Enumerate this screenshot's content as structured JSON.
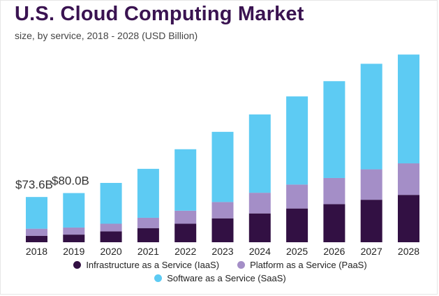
{
  "title": "U.S. Cloud Computing Market",
  "subtitle": "size, by service, 2018 - 2028 (USD Billion)",
  "colors": {
    "iaas": "#321043",
    "paas": "#a48ec7",
    "saas": "#5dcbf3",
    "title": "#3a1351"
  },
  "chart_data": {
    "type": "bar",
    "stacked": true,
    "categories": [
      "2018",
      "2019",
      "2020",
      "2021",
      "2022",
      "2023",
      "2024",
      "2025",
      "2026",
      "2027",
      "2028"
    ],
    "series": [
      {
        "name": "Infrastructure as a Service (IaaS)",
        "color": "#321043",
        "values": [
          10.5,
          12.4,
          17.7,
          23.0,
          30.1,
          38.9,
          46.9,
          54.9,
          62.0,
          69.1,
          77.0
        ]
      },
      {
        "name": "Platform as a Service (PaaS)",
        "color": "#a48ec7",
        "values": [
          11.5,
          11.5,
          12.4,
          16.8,
          21.2,
          26.5,
          33.6,
          38.9,
          42.5,
          49.5,
          51.3
        ]
      },
      {
        "name": "Software as a Service (SaaS)",
        "color": "#5dcbf3",
        "values": [
          51.6,
          56.1,
          66.4,
          79.6,
          100.0,
          114.2,
          127.4,
          143.4,
          157.5,
          171.7,
          177.0
        ]
      }
    ],
    "data_labels": [
      {
        "category": "2018",
        "text": "$73.6B"
      },
      {
        "category": "2019",
        "text": "$80.0B"
      }
    ],
    "ylim": [
      0,
      310
    ],
    "grid": false,
    "legend_position": "bottom"
  }
}
